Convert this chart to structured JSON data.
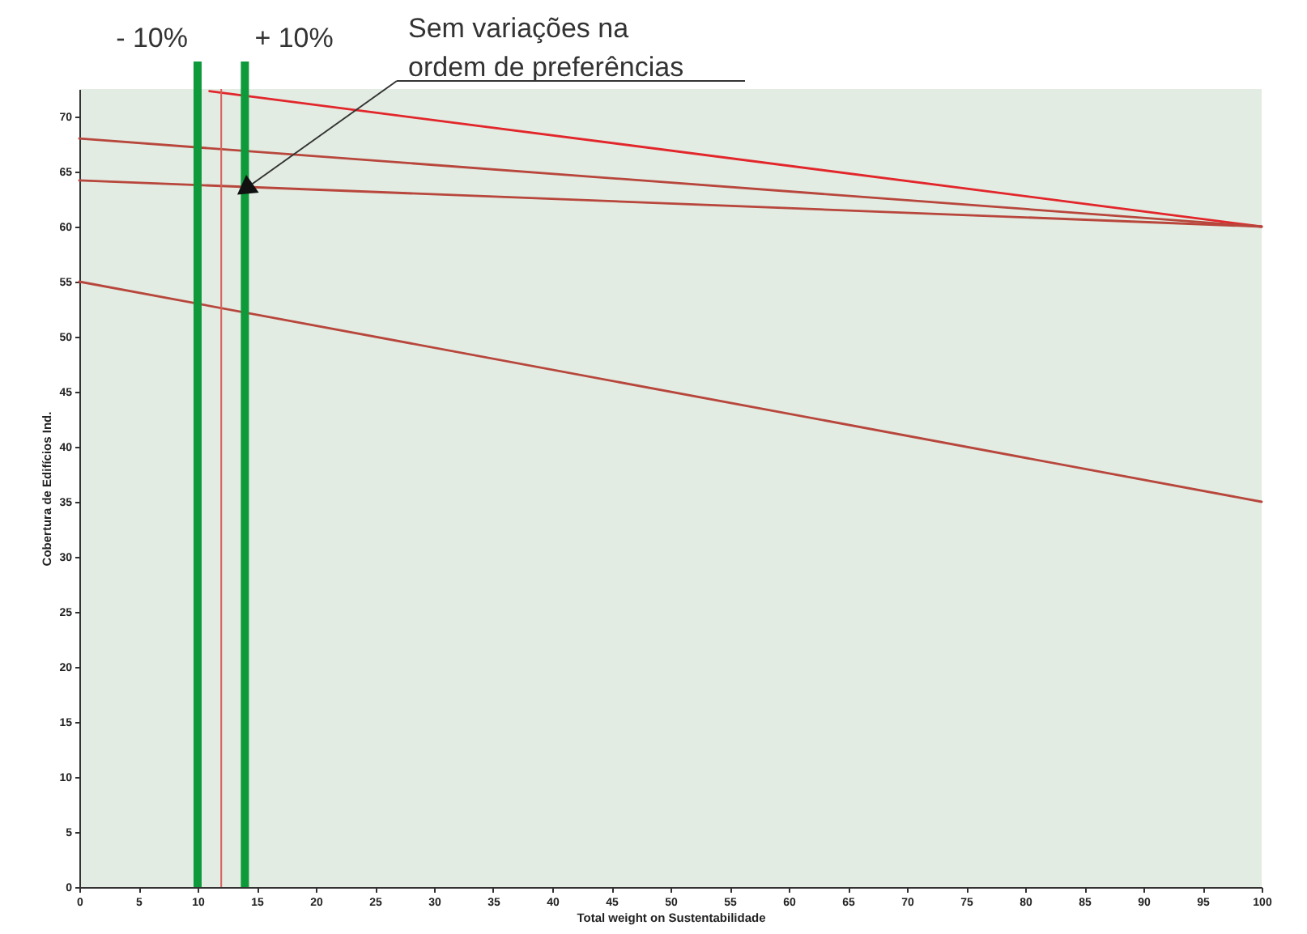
{
  "chart_data": {
    "type": "line",
    "xlabel": "Total weight on Sustentabilidade",
    "ylabel": "Cobertura de Edifícios Ind.",
    "xlim": [
      0,
      100
    ],
    "ylim": [
      0,
      72.5
    ],
    "xticks": [
      0,
      5,
      10,
      15,
      20,
      25,
      30,
      35,
      40,
      45,
      50,
      55,
      60,
      65,
      70,
      75,
      80,
      85,
      90,
      95,
      100
    ],
    "yticks": [
      0,
      5,
      10,
      15,
      20,
      25,
      30,
      35,
      40,
      45,
      50,
      55,
      60,
      65,
      70
    ],
    "series": [
      {
        "color": "#e2262b",
        "x": [
          11,
          100
        ],
        "values": [
          72.3,
          60
        ]
      },
      {
        "color": "#b8463c",
        "x": [
          0,
          100
        ],
        "values": [
          68,
          60
        ]
      },
      {
        "color": "#b8463c",
        "x": [
          0,
          100
        ],
        "values": [
          64.2,
          60
        ]
      },
      {
        "color": "#b8463c",
        "x": [
          0,
          100
        ],
        "values": [
          55,
          35
        ]
      }
    ],
    "ref_lines": [
      {
        "axis": "x",
        "value": 10,
        "color": "#0e9a3a"
      },
      {
        "axis": "x",
        "value": 14,
        "color": "#0e9a3a"
      },
      {
        "axis": "x",
        "value": 12,
        "color": "#d9605a"
      }
    ],
    "annotations": [
      "- 10%",
      "+ 10%",
      {
        "text": "Sem variações na\nordem de preferências",
        "x": 14,
        "y": 63.4
      }
    ]
  }
}
